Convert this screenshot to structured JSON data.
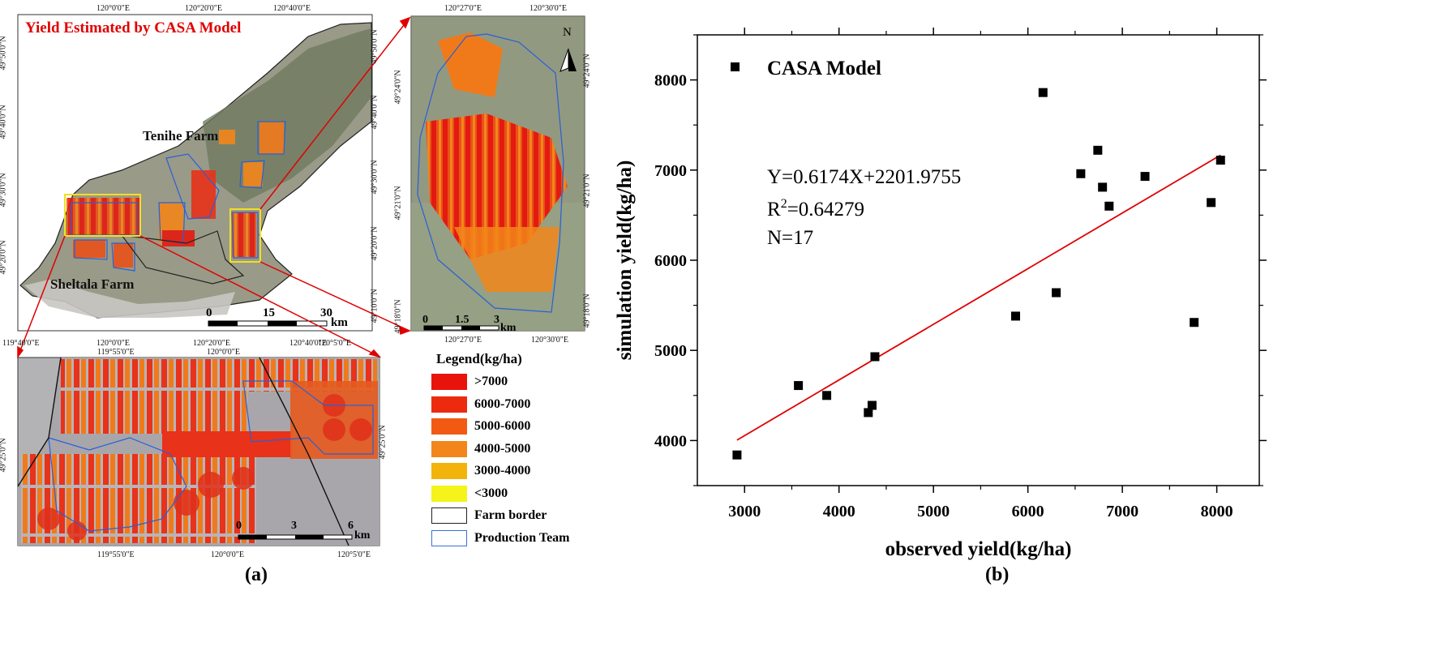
{
  "map": {
    "title": "Yield Estimated by CASA Model",
    "farms": [
      "Tenihe Farm",
      "Sheltala Farm"
    ],
    "north_label": "N",
    "main_scale": {
      "labels": [
        "0",
        "15",
        "30"
      ],
      "unit": "km"
    },
    "zoom_right_scale": {
      "labels": [
        "0",
        "1.5",
        "3"
      ],
      "unit": "km"
    },
    "zoom_bottom_scale": {
      "labels": [
        "0",
        "3",
        "6"
      ],
      "unit": "km"
    },
    "main_top_lon": [
      "120°0'0\"E",
      "120°20'0\"E",
      "120°40'0\"E"
    ],
    "main_bottom_lon": [
      "119°40'0\"E",
      "120°0'0\"E",
      "120°20'0\"E",
      "120°40'0\"E"
    ],
    "main_left_lat": [
      "49°50'0\"N",
      "49°40'0\"N",
      "49°30'0\"N",
      "49°20'0\"N"
    ],
    "main_right_lat": [
      "49°50'0\"N",
      "49°40'0\"N",
      "49°30'0\"N",
      "49°20'0\"N",
      "49°10'0\"N"
    ],
    "zr_top_lon": [
      "120°27'0\"E",
      "120°30'0\"E"
    ],
    "zr_bottom_lon": [
      "120°27'0\"E",
      "120°30'0\"E"
    ],
    "zr_left_lat": [
      "49°24'0\"N",
      "49°21'0\"N",
      "49°18'0\"N"
    ],
    "zr_right_lat": [
      "49°24'0\"N",
      "49°21'0\"N",
      "49°18'0\"N"
    ],
    "zb_top_lon": [
      "119°55'0\"E",
      "120°0'0\"E",
      "120°5'0\"E"
    ],
    "zb_bottom_lon": [
      "119°55'0\"E",
      "120°0'0\"E",
      "120°5'0\"E"
    ],
    "zb_lat": "49°25'0\"N"
  },
  "legend": {
    "title": "Legend(kg/ha)",
    "items": [
      {
        "label": ">7000",
        "color": "#e8140c"
      },
      {
        "label": "6000-7000",
        "color": "#ec2a10"
      },
      {
        "label": "5000-6000",
        "color": "#f25a14"
      },
      {
        "label": "4000-5000",
        "color": "#f2861a"
      },
      {
        "label": "3000-4000",
        "color": "#f2b40c"
      },
      {
        "label": "<3000",
        "color": "#f4f41a"
      },
      {
        "label": "Farm border",
        "color": "#ffffff",
        "border": "#222222"
      },
      {
        "label": "Production Team",
        "color": "#ffffff",
        "border": "#3a6fd8"
      }
    ]
  },
  "panel_labels": {
    "a": "(a)",
    "b": "(b)"
  },
  "chart_data": {
    "type": "scatter",
    "title": "",
    "xlabel": "observed yield(kg/ha)",
    "ylabel": "simulation yield(kg/ha)",
    "xlim": [
      2500,
      8450
    ],
    "ylim": [
      3500,
      8500
    ],
    "xticks": [
      3000,
      4000,
      5000,
      6000,
      7000,
      8000
    ],
    "yticks": [
      4000,
      5000,
      6000,
      7000,
      8000
    ],
    "legend": {
      "label": "CASA Model",
      "position": "top-left"
    },
    "equation": "Y=0.6174X+2201.9755",
    "r2_prefix": "R",
    "r2_sup": "2",
    "r2_value": "=0.64279",
    "n_label": "N=17",
    "series": [
      {
        "name": "CASA Model",
        "marker": "square",
        "color": "#000000",
        "points": [
          [
            2920,
            3840
          ],
          [
            3570,
            4610
          ],
          [
            3870,
            4500
          ],
          [
            4310,
            4310
          ],
          [
            4350,
            4390
          ],
          [
            4380,
            4930
          ],
          [
            5870,
            5380
          ],
          [
            6160,
            7860
          ],
          [
            6300,
            5640
          ],
          [
            6560,
            6960
          ],
          [
            6740,
            7220
          ],
          [
            6790,
            6810
          ],
          [
            6860,
            6600
          ],
          [
            7240,
            6930
          ],
          [
            7760,
            5310
          ],
          [
            7940,
            6640
          ],
          [
            8040,
            7110
          ]
        ]
      }
    ],
    "fit_line": {
      "color": "#e00000",
      "x": [
        2920,
        8040
      ],
      "y": [
        4005,
        7166
      ]
    }
  }
}
